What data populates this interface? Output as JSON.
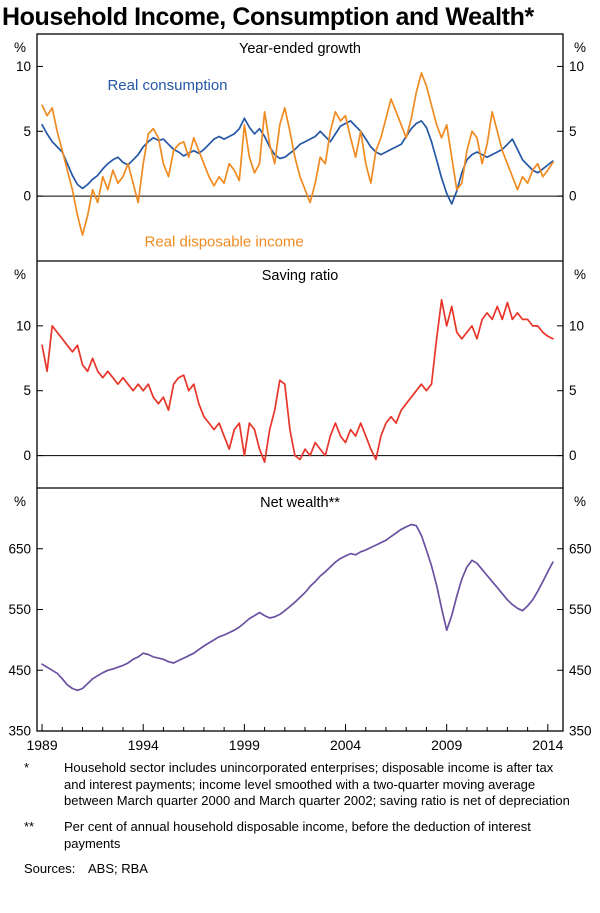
{
  "page_title": "Household Income, Consumption and Wealth*",
  "x_axis": {
    "labels": [
      "1989",
      "1994",
      "1999",
      "2004",
      "2009",
      "2014"
    ]
  },
  "chart_data": [
    {
      "type": "line",
      "title": "Year-ended growth",
      "unit": "%",
      "ylim": [
        -5,
        12.5
      ],
      "yticks": [
        0,
        5,
        10
      ],
      "zero_line": true,
      "x_start": 1989.0,
      "x_step": 0.25,
      "series": [
        {
          "name": "Real consumption",
          "color": "#2457a5",
          "values": [
            5.5,
            4.8,
            4.2,
            3.8,
            3.4,
            2.5,
            1.6,
            0.9,
            0.6,
            0.9,
            1.3,
            1.6,
            2.1,
            2.5,
            2.8,
            3.0,
            2.6,
            2.4,
            2.8,
            3.2,
            3.8,
            4.2,
            4.5,
            4.3,
            4.4,
            4.0,
            3.6,
            3.4,
            3.1,
            3.3,
            3.5,
            3.3,
            3.6,
            4.0,
            4.4,
            4.6,
            4.4,
            4.6,
            4.8,
            5.2,
            6.0,
            5.3,
            4.8,
            5.2,
            4.6,
            3.8,
            3.2,
            2.9,
            3.0,
            3.3,
            3.6,
            4.0,
            4.2,
            4.4,
            4.6,
            5.0,
            4.6,
            4.2,
            4.8,
            5.4,
            5.6,
            5.8,
            5.4,
            5.0,
            4.4,
            3.8,
            3.4,
            3.2,
            3.4,
            3.6,
            3.8,
            4.0,
            4.6,
            5.2,
            5.6,
            5.8,
            5.3,
            4.2,
            2.8,
            1.4,
            0.2,
            -0.6,
            0.4,
            1.8,
            2.8,
            3.2,
            3.4,
            3.2,
            3.0,
            3.2,
            3.4,
            3.6,
            4.0,
            4.4,
            3.6,
            2.8,
            2.4,
            2.0,
            1.8,
            2.1,
            2.4,
            2.7
          ]
        },
        {
          "name": "Real disposable income",
          "color": "#f08b22",
          "values": [
            7.0,
            6.2,
            6.8,
            5.0,
            3.5,
            2.0,
            0.5,
            -1.5,
            -3.0,
            -1.5,
            0.5,
            -0.5,
            1.5,
            0.5,
            2.0,
            1.0,
            1.5,
            2.5,
            1.0,
            -0.5,
            2.5,
            4.8,
            5.2,
            4.5,
            2.5,
            1.5,
            3.5,
            4.0,
            4.2,
            3.0,
            4.5,
            3.5,
            2.5,
            1.5,
            0.8,
            1.5,
            1.0,
            2.5,
            2.0,
            1.2,
            5.5,
            3.0,
            1.8,
            2.5,
            6.5,
            4.0,
            2.5,
            5.5,
            6.8,
            5.0,
            3.0,
            1.5,
            0.5,
            -0.5,
            1.0,
            3.0,
            2.5,
            5.0,
            6.5,
            5.8,
            6.2,
            4.5,
            3.0,
            5.0,
            2.5,
            1.0,
            3.5,
            4.5,
            6.0,
            7.5,
            6.5,
            5.5,
            4.5,
            6.0,
            8.0,
            9.5,
            8.5,
            7.0,
            5.5,
            4.5,
            5.5,
            3.0,
            0.5,
            1.0,
            3.5,
            5.0,
            4.5,
            2.5,
            4.0,
            6.5,
            5.0,
            3.5,
            2.5,
            1.5,
            0.5,
            1.5,
            1.0,
            2.0,
            2.5,
            1.5,
            2.0,
            2.6
          ]
        }
      ],
      "annotations": [
        {
          "text": "Real consumption",
          "x": 1995.2,
          "y": 8.2,
          "color": "#2457a5"
        },
        {
          "text": "Real disposable income",
          "x": 1998.0,
          "y": -3.9,
          "color": "#f08b22"
        }
      ]
    },
    {
      "type": "line",
      "title": "Saving ratio",
      "unit": "%",
      "ylim": [
        -2.5,
        15
      ],
      "yticks": [
        0,
        5,
        10
      ],
      "zero_line": true,
      "x_start": 1989.0,
      "x_step": 0.25,
      "series": [
        {
          "name": "Saving ratio",
          "color": "#e8352a",
          "values": [
            8.5,
            6.5,
            10.0,
            9.5,
            9.0,
            8.5,
            8.0,
            8.5,
            7.0,
            6.5,
            7.5,
            6.5,
            6.0,
            6.5,
            6.0,
            5.5,
            6.0,
            5.5,
            5.0,
            5.5,
            5.0,
            5.5,
            4.5,
            4.0,
            4.5,
            3.5,
            5.5,
            6.0,
            6.2,
            5.0,
            5.5,
            4.0,
            3.0,
            2.5,
            2.0,
            2.5,
            1.5,
            0.5,
            2.0,
            2.5,
            0.0,
            2.5,
            2.0,
            0.5,
            -0.5,
            2.0,
            3.5,
            5.8,
            5.5,
            2.0,
            0.0,
            -0.3,
            0.5,
            0.0,
            1.0,
            0.5,
            0.0,
            1.5,
            2.5,
            1.5,
            1.0,
            2.0,
            1.5,
            2.5,
            1.5,
            0.5,
            -0.3,
            1.5,
            2.5,
            3.0,
            2.5,
            3.5,
            4.0,
            4.5,
            5.0,
            5.5,
            5.0,
            5.5,
            9.0,
            12.0,
            10.0,
            11.5,
            9.5,
            9.0,
            9.5,
            10.0,
            9.0,
            10.5,
            11.0,
            10.5,
            11.5,
            10.5,
            11.8,
            10.5,
            11.0,
            10.5,
            10.5,
            10.0,
            10.0,
            9.5,
            9.2,
            9.0
          ]
        }
      ],
      "annotations": []
    },
    {
      "type": "line",
      "title": "Net wealth**",
      "unit": "%",
      "ylim": [
        350,
        750
      ],
      "yticks": [
        350,
        450,
        550,
        650
      ],
      "zero_line": false,
      "x_start": 1989.0,
      "x_step": 0.25,
      "series": [
        {
          "name": "Net wealth",
          "color": "#6a51a1",
          "values": [
            460,
            455,
            450,
            445,
            436,
            426,
            420,
            417,
            420,
            428,
            436,
            441,
            446,
            450,
            452,
            455,
            458,
            462,
            468,
            472,
            478,
            476,
            472,
            470,
            468,
            464,
            462,
            466,
            470,
            474,
            478,
            484,
            490,
            495,
            500,
            505,
            508,
            512,
            516,
            521,
            528,
            535,
            540,
            545,
            540,
            536,
            538,
            542,
            548,
            555,
            562,
            570,
            578,
            588,
            596,
            605,
            612,
            620,
            628,
            634,
            638,
            642,
            640,
            645,
            648,
            652,
            656,
            660,
            664,
            670,
            676,
            682,
            686,
            690,
            688,
            672,
            648,
            622,
            590,
            552,
            516,
            540,
            572,
            600,
            620,
            631,
            626,
            616,
            606,
            596,
            586,
            576,
            566,
            558,
            552,
            548,
            556,
            566,
            580,
            596,
            612,
            628
          ]
        }
      ],
      "annotations": []
    }
  ],
  "footnotes": [
    {
      "marker": "*",
      "text": "Household sector includes unincorporated enterprises; disposable income is after tax and interest payments; income level smoothed with a two-quarter moving average between March quarter 2000 and March quarter 2002; saving ratio is net of depreciation"
    },
    {
      "marker": "**",
      "text": "Per cent of annual household disposable income, before the deduction of interest payments"
    }
  ],
  "sources_label": "Sources:",
  "sources_text": "ABS; RBA"
}
